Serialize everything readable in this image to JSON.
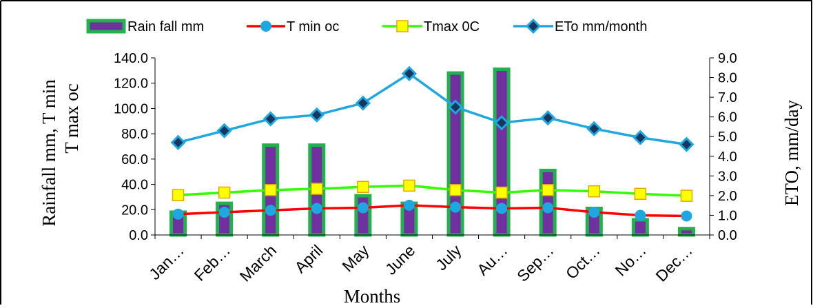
{
  "chart_data": {
    "type": "bar",
    "categories": [
      "Jan…",
      "Feb…",
      "March",
      "April",
      "May",
      "June",
      "July",
      "Au…",
      "Sep…",
      "Oct…",
      "No…",
      "Dec…"
    ],
    "series": [
      {
        "name": "Rain fall mm",
        "type": "bar",
        "axis": "left",
        "fill": "#7030A0",
        "stroke": "#22B14C",
        "values": [
          18,
          25,
          71,
          71,
          31,
          25,
          128,
          131,
          51,
          21,
          12,
          5
        ]
      },
      {
        "name": "T min oc",
        "type": "line",
        "axis": "left",
        "color": "#FF0000",
        "marker": "circle",
        "marker_color": "#1EA7E1",
        "values": [
          16.5,
          18,
          19.5,
          21,
          21.5,
          23.5,
          22,
          21,
          21.5,
          18,
          15.5,
          15
        ]
      },
      {
        "name": "Tmax 0C",
        "type": "line",
        "axis": "left",
        "color": "#33FF00",
        "marker": "square",
        "marker_color": "#FFFF00",
        "values": [
          31.5,
          33.5,
          35.5,
          36.5,
          38,
          39,
          35.5,
          33.5,
          35.5,
          34.5,
          32.5,
          31
        ]
      },
      {
        "name": "ETo mm/month",
        "type": "line",
        "axis": "right",
        "color": "#1EA7E1",
        "marker": "diamond",
        "marker_color": "#17375E",
        "values": [
          4.7,
          5.3,
          5.9,
          6.1,
          6.7,
          8.2,
          6.5,
          5.7,
          5.95,
          5.4,
          4.95,
          4.6
        ]
      }
    ],
    "ylabel": "Rainfall mm, T min T max oc",
    "y2label": "ETO, mm/day",
    "xlabel": "Months",
    "ylim": [
      0,
      140
    ],
    "y2lim": [
      0,
      9
    ],
    "yticks": [
      "0.0",
      "20.0",
      "40.0",
      "60.0",
      "80.0",
      "100.0",
      "120.0",
      "140.0"
    ],
    "y2ticks": [
      "0.0",
      "1.0",
      "2.0",
      "3.0",
      "4.0",
      "5.0",
      "6.0",
      "7.0",
      "8.0",
      "9.0"
    ],
    "legend_position": "top",
    "grid": false
  }
}
